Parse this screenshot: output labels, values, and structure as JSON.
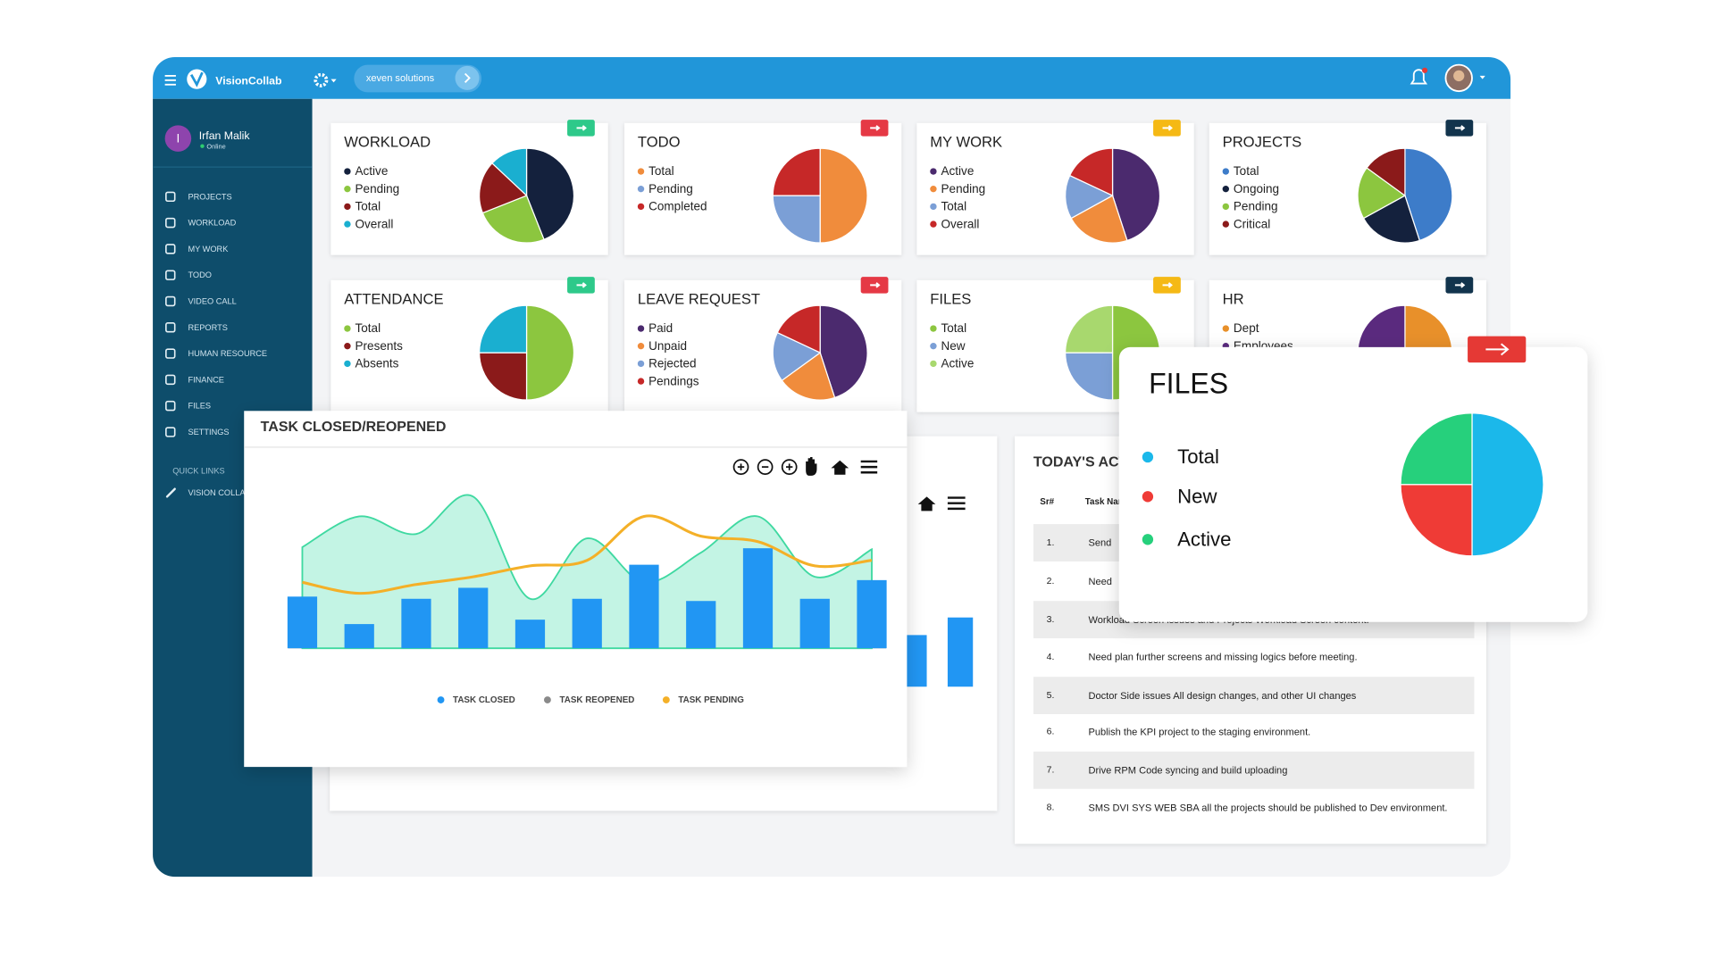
{
  "header": {
    "app_name": "VisionCollab",
    "organization": "xeven solutions"
  },
  "user": {
    "initial": "I",
    "name": "Irfan Malik",
    "status": "Online"
  },
  "menu": [
    "PROJECTS",
    "WORKLOAD",
    "MY WORK",
    "TODO",
    "VIDEO CALL",
    "REPORTS",
    "HUMAN RESOURCE",
    "FINANCE",
    "FILES",
    "SETTINGS"
  ],
  "quick_links": {
    "title": "QUICK LINKS",
    "items": [
      "VISION COLLAB"
    ]
  },
  "cards": [
    {
      "title": "WORKLOAD",
      "button_color": "#2ec98a",
      "items": [
        {
          "name": "Active",
          "color": "#14213d",
          "value": 44
        },
        {
          "name": "Pending",
          "color": "#8cc63f",
          "value": 25
        },
        {
          "name": "Total",
          "color": "#8b1a1a",
          "value": 18
        },
        {
          "name": "Overall",
          "color": "#1aafd0",
          "value": 13
        }
      ]
    },
    {
      "title": "TODO",
      "button_color": "#e53945",
      "items": [
        {
          "name": "Total",
          "color": "#f08c3c",
          "value": 50
        },
        {
          "name": "Pending",
          "color": "#7b9fd6",
          "value": 25
        },
        {
          "name": "Completed",
          "color": "#c62828",
          "value": 25
        }
      ]
    },
    {
      "title": "MY WORK",
      "button_color": "#f5b915",
      "items": [
        {
          "name": "Active",
          "color": "#4b2a6e",
          "value": 45
        },
        {
          "name": "Pending",
          "color": "#f08c3c",
          "value": 22
        },
        {
          "name": "Total",
          "color": "#7b9fd6",
          "value": 15
        },
        {
          "name": "Overall",
          "color": "#c62828",
          "value": 18
        }
      ]
    },
    {
      "title": "PROJECTS",
      "button_color": "#12344d",
      "items": [
        {
          "name": "Total",
          "color": "#3d7cc9",
          "value": 45
        },
        {
          "name": "Ongoing",
          "color": "#14213d",
          "value": 22
        },
        {
          "name": "Pending",
          "color": "#8cc63f",
          "value": 18
        },
        {
          "name": "Critical",
          "color": "#8b1a1a",
          "value": 15
        }
      ]
    },
    {
      "title": "ATTENDANCE",
      "button_color": "#2ec98a",
      "items": [
        {
          "name": "Total",
          "color": "#8cc63f",
          "value": 50
        },
        {
          "name": "Presents",
          "color": "#8b1a1a",
          "value": 25
        },
        {
          "name": "Absents",
          "color": "#1aafd0",
          "value": 25
        }
      ]
    },
    {
      "title": "LEAVE REQUEST",
      "button_color": "#e53945",
      "items": [
        {
          "name": "Paid",
          "color": "#4b2a6e",
          "value": 45
        },
        {
          "name": "Unpaid",
          "color": "#f08c3c",
          "value": 20
        },
        {
          "name": "Rejected",
          "color": "#7b9fd6",
          "value": 17
        },
        {
          "name": "Pendings",
          "color": "#c62828",
          "value": 18
        }
      ]
    },
    {
      "title": "FILES",
      "button_color": "#f5b915",
      "items": [
        {
          "name": "Total",
          "color": "#8cc63f",
          "value": 50
        },
        {
          "name": "New",
          "color": "#7b9fd6",
          "value": 25
        },
        {
          "name": "Active",
          "color": "#a8d86e",
          "value": 25
        }
      ]
    },
    {
      "title": "HR",
      "button_color": "#12344d",
      "items": [
        {
          "name": "Dept",
          "color": "#e8902a",
          "value": 30
        },
        {
          "name": "Employees",
          "color": "#5a2a7e",
          "value": 70
        }
      ]
    }
  ],
  "background_chart": {
    "color": "#2196f3",
    "ylim": [
      0,
      160
    ],
    "values": [
      47,
      63
    ]
  },
  "task_chart": {
    "type": "bar",
    "title": "TASK CLOSED/REOPENED",
    "ylim": [
      0,
      160
    ],
    "categories": [
      null,
      null,
      null,
      null,
      null,
      null,
      null,
      null,
      null,
      null,
      null
    ],
    "series": [
      {
        "name": "TASK CLOSED",
        "color": "#2196f3",
        "values": [
          47,
          22,
          45,
          55,
          26,
          45,
          76,
          43,
          91,
          45,
          62
        ]
      },
      {
        "name": "TASK REOPENED",
        "color": "#8a8a8a",
        "fill_color": "#b8f2df",
        "stroke_color": "#3fd9a1",
        "values": [
          92,
          120,
          104,
          138,
          45,
          100,
          60,
          87,
          120,
          65,
          90
        ]
      },
      {
        "name": "TASK PENDING",
        "color": "#f4b028",
        "values": [
          60,
          50,
          58,
          65,
          75,
          80,
          120,
          102,
          97,
          75,
          80
        ]
      }
    ]
  },
  "activities": {
    "title": "TODAY'S ACTIVITIES",
    "columns": [
      "Sr#",
      "Task Name"
    ],
    "rows": [
      {
        "sr": "1.",
        "task": "Send"
      },
      {
        "sr": "2.",
        "task": "Need"
      },
      {
        "sr": "3.",
        "task": "Workload Screen issues and Projects Workload Screen content."
      },
      {
        "sr": "4.",
        "task": "Need plan further screens and missing logics before meeting."
      },
      {
        "sr": "5.",
        "task": "Doctor Side issues All design changes, and other UI changes"
      },
      {
        "sr": "6.",
        "task": "Publish the KPI project to the staging environment."
      },
      {
        "sr": "7.",
        "task": "Drive RPM Code syncing and build uploading"
      },
      {
        "sr": "8.",
        "task": "SMS DVI SYS WEB SBA all the projects should be published to Dev environment."
      }
    ]
  },
  "files_popup": {
    "title": "FILES",
    "button_color": "#e53935",
    "items": [
      {
        "name": "Total",
        "color": "#1bb8ea",
        "value": 50
      },
      {
        "name": "New",
        "color": "#ef3b36",
        "value": 25
      },
      {
        "name": "Active",
        "color": "#26d07c",
        "value": 25
      }
    ]
  }
}
